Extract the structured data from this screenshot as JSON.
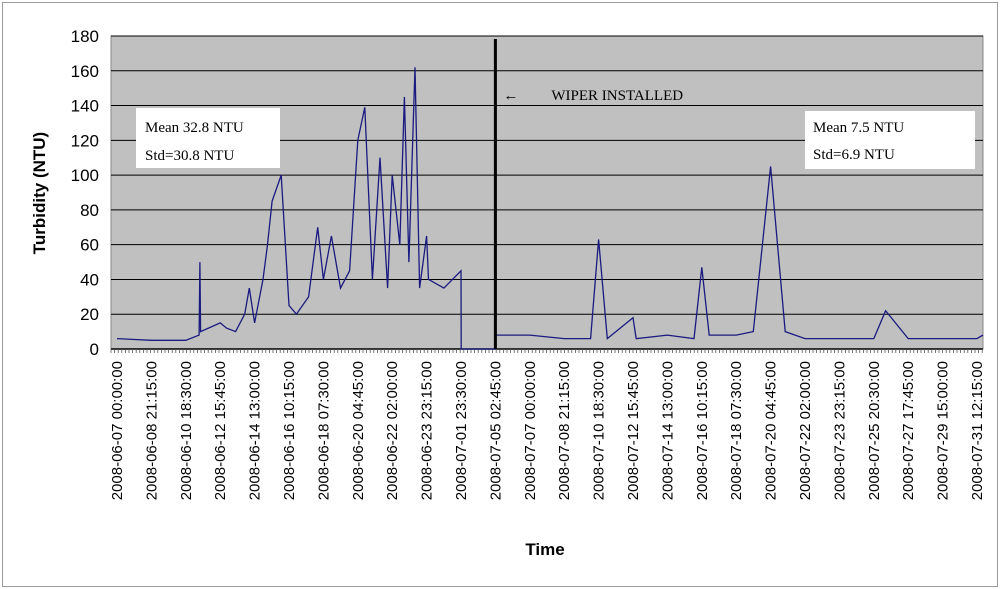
{
  "chart_data": {
    "type": "line",
    "title": "",
    "xlabel": "Time",
    "ylabel": "Turbidity (NTU)",
    "ylim": [
      0,
      180
    ],
    "yticks": [
      "0",
      "20",
      "40",
      "60",
      "80",
      "100",
      "120",
      "140",
      "160",
      "180"
    ],
    "grid": "horizontal",
    "plot_background": "#c0c0c0",
    "line_color": "#1a1a80",
    "x_tick_labels": [
      "2008-06-07 00:00:00",
      "2008-06-08 21:15:00",
      "2008-06-10 18:30:00",
      "2008-06-12 15:45:00",
      "2008-06-14 13:00:00",
      "2008-06-16 10:15:00",
      "2008-06-18 07:30:00",
      "2008-06-20 04:45:00",
      "2008-06-22 02:00:00",
      "2008-06-23 23:15:00",
      "2008-07-01 23:30:00",
      "2008-07-05 02:45:00",
      "2008-07-07 00:00:00",
      "2008-07-08 21:15:00",
      "2008-07-10 18:30:00",
      "2008-07-12 15:45:00",
      "2008-07-14 13:00:00",
      "2008-07-16 10:15:00",
      "2008-07-18 07:30:00",
      "2008-07-20 04:45:00",
      "2008-07-22 02:00:00",
      "2008-07-23 23:15:00",
      "2008-07-25 20:30:00",
      "2008-07-27 17:45:00",
      "2008-07-29 15:00:00",
      "2008-07-31 12:15:00"
    ],
    "series": [
      {
        "x": [
          "2008-06-07 00:00:00",
          "2008-06-08 21:15:00",
          "2008-06-10 18:30:00",
          "2008-06-11 12:00:00",
          "2008-06-11 13:00:00",
          "2008-06-11 14:00:00",
          "2008-06-12 15:45:00",
          "2008-06-13 00:00:00",
          "2008-06-13 12:00:00",
          "2008-06-14 00:00:00",
          "2008-06-14 06:00:00",
          "2008-06-14 13:00:00",
          "2008-06-15 00:00:00",
          "2008-06-15 06:00:00",
          "2008-06-15 12:00:00",
          "2008-06-16 00:00:00",
          "2008-06-16 10:15:00",
          "2008-06-16 20:00:00",
          "2008-06-17 12:00:00",
          "2008-06-18 00:00:00",
          "2008-06-18 07:30:00",
          "2008-06-18 18:00:00",
          "2008-06-19 06:00:00",
          "2008-06-19 18:00:00",
          "2008-06-20 04:45:00",
          "2008-06-20 14:00:00",
          "2008-06-21 00:00:00",
          "2008-06-21 10:00:00",
          "2008-06-21 20:00:00",
          "2008-06-22 02:00:00",
          "2008-06-22 12:00:00",
          "2008-06-22 18:00:00",
          "2008-06-23 00:00:00",
          "2008-06-23 08:00:00",
          "2008-06-23 14:00:00",
          "2008-06-23 23:15:00",
          "2008-06-24 10:00:00",
          "2008-06-28 00:00:00",
          "2008-07-01 23:30:00",
          "2008-07-02 00:00:00",
          "2008-07-05 02:45:00",
          "2008-07-05 03:00:00",
          "2008-07-07 00:00:00",
          "2008-07-08 21:15:00",
          "2008-07-10 08:00:00",
          "2008-07-10 18:30:00",
          "2008-07-11 06:00:00",
          "2008-07-12 15:45:00",
          "2008-07-12 20:00:00",
          "2008-07-14 13:00:00",
          "2008-07-16 00:00:00",
          "2008-07-16 10:15:00",
          "2008-07-16 20:00:00",
          "2008-07-18 07:30:00",
          "2008-07-19 06:00:00",
          "2008-07-19 18:00:00",
          "2008-07-20 04:45:00",
          "2008-07-21 00:00:00",
          "2008-07-22 02:00:00",
          "2008-07-23 23:15:00",
          "2008-07-25 20:30:00",
          "2008-07-26 12:00:00",
          "2008-07-27 17:45:00",
          "2008-07-29 15:00:00",
          "2008-07-31 12:15:00",
          "2008-08-01 00:00:00"
        ],
        "y": [
          6,
          5,
          5,
          8,
          50,
          10,
          15,
          12,
          10,
          20,
          35,
          15,
          40,
          60,
          85,
          100,
          25,
          20,
          30,
          70,
          40,
          65,
          35,
          45,
          120,
          139,
          40,
          110,
          35,
          100,
          60,
          145,
          50,
          162,
          35,
          65,
          40,
          35,
          45,
          0,
          0,
          8,
          8,
          6,
          6,
          63,
          6,
          18,
          6,
          8,
          6,
          47,
          8,
          8,
          10,
          60,
          105,
          10,
          6,
          6,
          6,
          22,
          6,
          6,
          6,
          8
        ]
      }
    ],
    "annotation": {
      "label": "WIPER INSTALLED",
      "arrow": "←",
      "at": "2008-07-05 02:45:00",
      "style": "vertical-line"
    },
    "stats_boxes": [
      {
        "line1": "Mean  32.8 NTU",
        "line2": "Std=30.8 NTU",
        "placement": "left"
      },
      {
        "line1": "Mean  7.5 NTU",
        "line2": "Std=6.9 NTU",
        "placement": "right"
      }
    ]
  }
}
